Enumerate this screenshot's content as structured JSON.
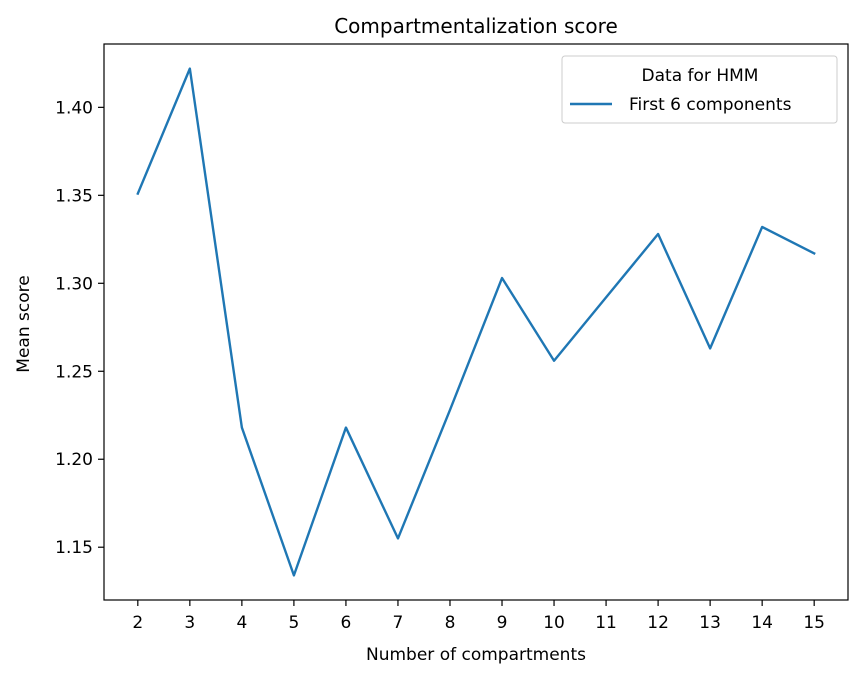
{
  "chart_data": {
    "type": "line",
    "title": "Compartmentalization score",
    "xlabel": "Number of compartments",
    "ylabel": "Mean score",
    "x": [
      2,
      3,
      4,
      5,
      6,
      7,
      8,
      9,
      10,
      11,
      12,
      13,
      14,
      15
    ],
    "xticks": [
      "2",
      "3",
      "4",
      "5",
      "6",
      "7",
      "8",
      "9",
      "10",
      "11",
      "12",
      "13",
      "14",
      "15"
    ],
    "yticks": [
      "1.15",
      "1.20",
      "1.25",
      "1.30",
      "1.35",
      "1.40"
    ],
    "ytick_values": [
      1.15,
      1.2,
      1.25,
      1.3,
      1.35,
      1.4
    ],
    "xlim": [
      1.35,
      15.65
    ],
    "ylim": [
      1.12,
      1.436
    ],
    "grid": false,
    "legend": {
      "title": "Data for HMM",
      "placement": "top-right"
    },
    "series": [
      {
        "name": "First 6 components",
        "color": "#1f77b4",
        "values": [
          1.351,
          1.422,
          1.218,
          1.134,
          1.218,
          1.155,
          1.228,
          1.303,
          1.256,
          1.292,
          1.328,
          1.263,
          1.332,
          1.317
        ]
      }
    ]
  }
}
